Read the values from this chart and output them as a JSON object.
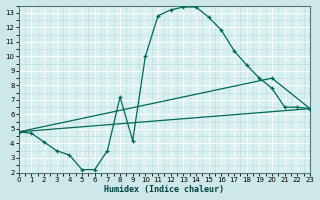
{
  "bg_color": "#cce8e8",
  "plot_bg_color": "#d8f0f0",
  "grid_major_color": "#ffffff",
  "grid_minor_color": "#b8d8d8",
  "line_color": "#006858",
  "xlabel": "Humidex (Indice chaleur)",
  "xlim": [
    0,
    23
  ],
  "ylim": [
    2,
    13.5
  ],
  "xticks": [
    0,
    1,
    2,
    3,
    4,
    5,
    6,
    7,
    8,
    9,
    10,
    11,
    12,
    13,
    14,
    15,
    16,
    17,
    18,
    19,
    20,
    21,
    22,
    23
  ],
  "yticks": [
    2,
    3,
    4,
    5,
    6,
    7,
    8,
    9,
    10,
    11,
    12,
    13
  ],
  "curve1_x": [
    0,
    1,
    2,
    3,
    4,
    5,
    6,
    7,
    8,
    9,
    10,
    11,
    12,
    13,
    14,
    15,
    16,
    17,
    18,
    19,
    20,
    21,
    22,
    23
  ],
  "curve1_y": [
    4.8,
    4.7,
    4.1,
    3.5,
    3.2,
    2.2,
    2.2,
    3.5,
    7.2,
    4.2,
    10.0,
    12.8,
    13.2,
    13.4,
    13.4,
    12.7,
    11.8,
    10.4,
    9.4,
    8.5,
    7.8,
    6.5,
    6.5,
    6.4
  ],
  "curve2_x": [
    0,
    23
  ],
  "curve2_y": [
    4.8,
    6.4
  ],
  "curve3_x": [
    0,
    20,
    23
  ],
  "curve3_y": [
    4.8,
    8.5,
    6.4
  ]
}
